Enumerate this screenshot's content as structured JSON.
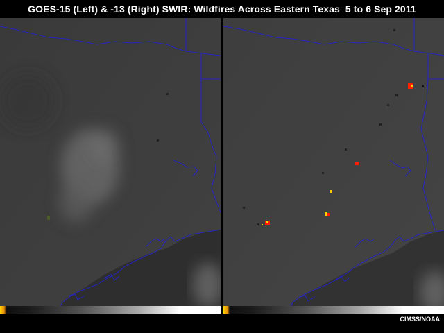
{
  "title": "GOES-15 (Left) & -13 (Right) SWIR: Wildfires Across Eastern Texas  5 to 6 Sep 2011",
  "credit": "CIMSS/NOAA",
  "colors": {
    "background": "#000000",
    "land": "#3c3c3c",
    "boundary": "#1f1fb8",
    "fire_hot": "#ff2000",
    "fire_warm": "#ffd000"
  },
  "panels": [
    {
      "id": "left",
      "satellite": "GOES-15",
      "position": "left"
    },
    {
      "id": "right",
      "satellite": "GOES-13",
      "position": "right"
    }
  ]
}
